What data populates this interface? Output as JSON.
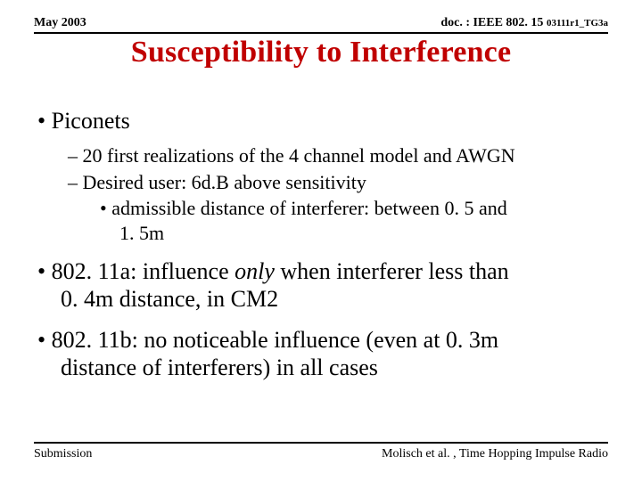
{
  "header": {
    "left": "May 2003",
    "right_main": "doc. : IEEE 802. 15 ",
    "right_tail": "03111r1_TG3a"
  },
  "title": "Susceptibility to Interference",
  "bullets": {
    "b1": "Piconets",
    "b1_1": "20 first realizations of the 4 channel model and AWGN",
    "b1_2": "Desired user: 6d.B above sensitivity",
    "b1_2_1a": "admissible distance of interferer: between 0. 5 and",
    "b1_2_1b": "1. 5m",
    "b2a": "802. 11a: influence ",
    "b2_only": "only",
    "b2b": " when interferer less than",
    "b2c": "0. 4m distance, in CM2",
    "b3a": "802. 11b: no noticeable influence (even at 0. 3m",
    "b3b": "distance of interferers) in all cases"
  },
  "footer": {
    "left": "Submission",
    "right": "Molisch et al. , Time Hopping Impulse Radio"
  },
  "colors": {
    "title_color": "#c00000",
    "text_color": "#000000",
    "background": "#ffffff",
    "rule_color": "#000000"
  },
  "typography": {
    "title_fontsize": 34,
    "level1_fontsize": 26,
    "level2_fontsize": 22,
    "level3_fontsize": 22,
    "header_fontsize": 14,
    "footer_fontsize": 14,
    "font_family": "Times New Roman"
  }
}
